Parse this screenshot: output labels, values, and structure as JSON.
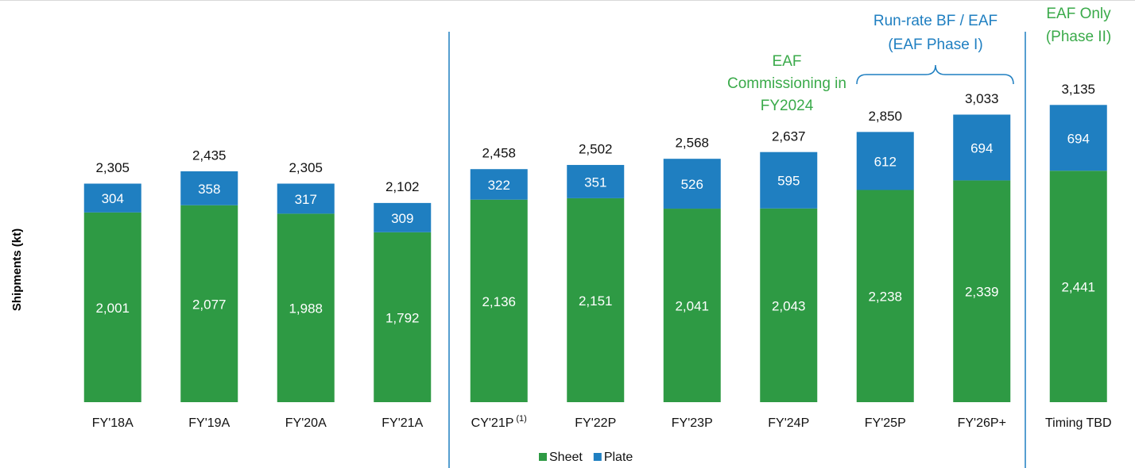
{
  "chart_data": {
    "type": "stacked_bar",
    "y_label": "Shipments (kt)",
    "categories": [
      "FY'18A",
      "FY'19A",
      "FY'20A",
      "FY'21A",
      "CY'21P",
      "FY'22P",
      "FY'23P",
      "FY'24P",
      "FY'25P",
      "FY'26P+",
      "Timing TBD"
    ],
    "category_notes": [
      null,
      null,
      null,
      null,
      "(1)",
      null,
      null,
      null,
      null,
      null,
      null
    ],
    "series": [
      {
        "name": "Sheet",
        "color": "#2e9a44",
        "values": [
          2001,
          2077,
          1988,
          1792,
          2136,
          2151,
          2041,
          2043,
          2238,
          2339,
          2441
        ],
        "value_labels": [
          "2,001",
          "2,077",
          "1,988",
          "1,792",
          "2,136",
          "2,151",
          "2,041",
          "2,043",
          "2,238",
          "2,339",
          "2,441"
        ]
      },
      {
        "name": "Plate",
        "color": "#1f7fc1",
        "values": [
          304,
          358,
          317,
          309,
          322,
          351,
          526,
          595,
          612,
          694,
          694
        ],
        "value_labels": [
          "304",
          "358",
          "317",
          "309",
          "322",
          "351",
          "526",
          "595",
          "612",
          "694",
          "694"
        ]
      }
    ],
    "totals": [
      2305,
      2435,
      2305,
      2102,
      2458,
      2502,
      2568,
      2637,
      2850,
      3033,
      3135
    ],
    "total_labels": [
      "2,305",
      "2,435",
      "2,305",
      "2,102",
      "2,458",
      "2,502",
      "2,568",
      "2,637",
      "2,850",
      "3,033",
      "3,135"
    ],
    "ylim": [
      0,
      4200
    ],
    "legend": "bottom",
    "annotations": [
      {
        "lines": [
          "EAF",
          "Commissioning in",
          "FY2024"
        ],
        "color": "#3aaa4a"
      },
      {
        "lines": [
          "Run-rate BF / EAF",
          "(EAF Phase I)"
        ],
        "color": "#1f7fc1"
      },
      {
        "lines": [
          "EAF Only",
          "(Phase II)"
        ],
        "color": "#3aaa4a"
      }
    ]
  }
}
